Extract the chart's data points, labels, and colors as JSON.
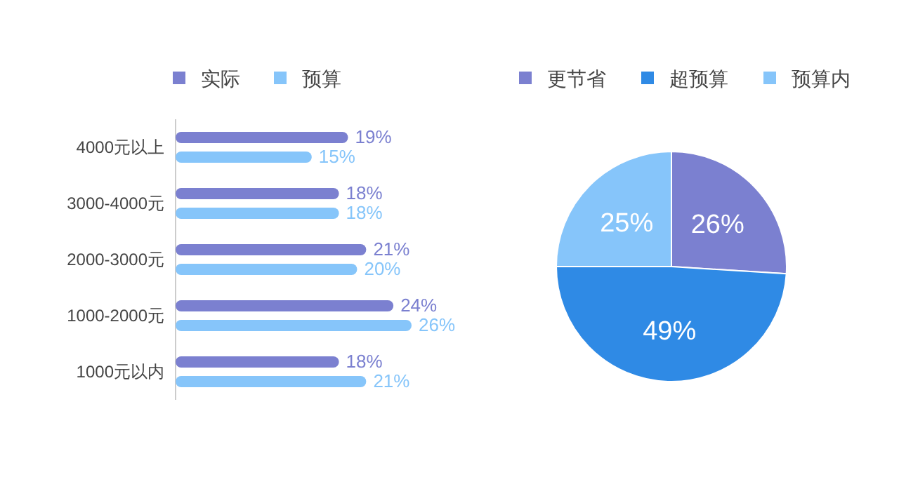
{
  "chart_data": [
    {
      "type": "bar",
      "orientation": "horizontal",
      "legend": "top",
      "categories": [
        "4000元以上",
        "3000-4000元",
        "2000-3000元",
        "1000-2000元",
        "1000元以内"
      ],
      "series": [
        {
          "name": "实际",
          "color": "#7b80d0",
          "values": [
            19,
            18,
            21,
            24,
            18
          ],
          "value_labels": [
            "19%",
            "18%",
            "21%",
            "24%",
            "18%"
          ]
        },
        {
          "name": "预算",
          "color": "#86c5fa",
          "values": [
            15,
            18,
            20,
            26,
            21
          ],
          "value_labels": [
            "15%",
            "18%",
            "20%",
            "26%",
            "21%"
          ]
        }
      ]
    },
    {
      "type": "pie",
      "legend": "top",
      "categories": [
        "更节省",
        "超预算",
        "预算内"
      ],
      "values": [
        26,
        49,
        25
      ],
      "colors": [
        "#7b80d0",
        "#2f8ae5",
        "#86c5fa"
      ],
      "value_labels": [
        "26%",
        "49%",
        "25%"
      ]
    }
  ]
}
